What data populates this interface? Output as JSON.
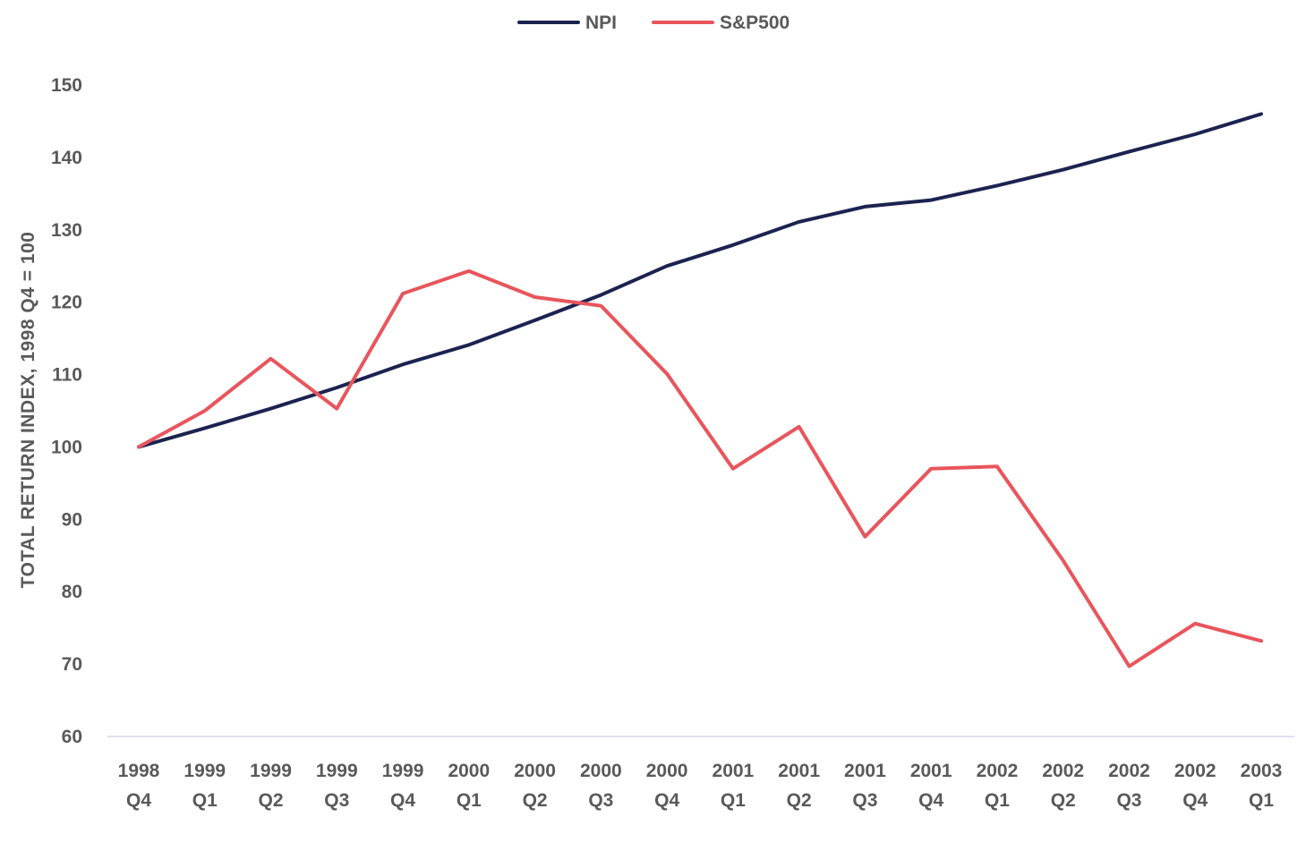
{
  "chart_data": {
    "type": "line",
    "title": "",
    "xlabel": "",
    "ylabel": "TOTAL RETURN INDEX, 1998 Q4 = 100",
    "ylim": [
      60,
      150
    ],
    "yticks": [
      60,
      70,
      80,
      90,
      100,
      110,
      120,
      130,
      140,
      150
    ],
    "grid": false,
    "legend_position": "top-center",
    "categories": [
      [
        "1998",
        "Q4"
      ],
      [
        "1999",
        "Q1"
      ],
      [
        "1999",
        "Q2"
      ],
      [
        "1999",
        "Q3"
      ],
      [
        "1999",
        "Q4"
      ],
      [
        "2000",
        "Q1"
      ],
      [
        "2000",
        "Q2"
      ],
      [
        "2000",
        "Q3"
      ],
      [
        "2000",
        "Q4"
      ],
      [
        "2001",
        "Q1"
      ],
      [
        "2001",
        "Q2"
      ],
      [
        "2001",
        "Q3"
      ],
      [
        "2001",
        "Q4"
      ],
      [
        "2002",
        "Q1"
      ],
      [
        "2002",
        "Q2"
      ],
      [
        "2002",
        "Q3"
      ],
      [
        "2002",
        "Q4"
      ],
      [
        "2003",
        "Q1"
      ]
    ],
    "series": [
      {
        "name": "NPI",
        "color": "#1c2350",
        "values": [
          100,
          102.6,
          105.3,
          108.2,
          111.4,
          114.1,
          117.5,
          121.0,
          125.0,
          127.9,
          131.1,
          133.2,
          134.1,
          136.1,
          138.3,
          140.8,
          143.2,
          146.0
        ]
      },
      {
        "name": "S&P500",
        "color": "#e8555c",
        "values": [
          100,
          105.0,
          112.2,
          105.3,
          121.2,
          124.3,
          120.7,
          119.5,
          110.1,
          97.0,
          102.8,
          87.6,
          97.0,
          97.3,
          84.3,
          69.7,
          75.6,
          73.2
        ]
      }
    ]
  }
}
